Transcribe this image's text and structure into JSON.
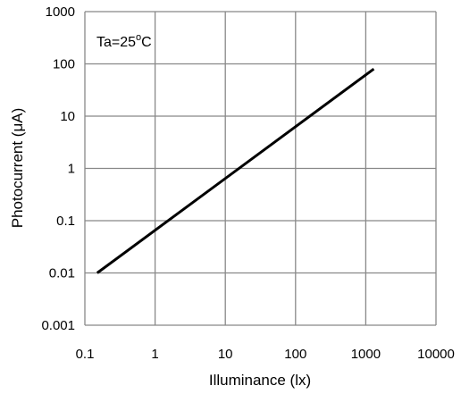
{
  "chart_data": {
    "type": "line",
    "title": "",
    "xlabel": "Illuminance (lx)",
    "ylabel": "Photocurrent (μA)",
    "x_scale": "log",
    "y_scale": "log",
    "xlim": [
      0.1,
      10000
    ],
    "ylim": [
      0.001,
      1000
    ],
    "grid": true,
    "legend": "none",
    "x_ticks": [
      "0.1",
      "1",
      "10",
      "100",
      "1000",
      "10000"
    ],
    "y_ticks": [
      "1000",
      "100",
      "10",
      "1",
      "0.1",
      "0.01",
      "0.001"
    ],
    "annotation": {
      "base": "Ta=25",
      "sup": "o",
      "unit": "C"
    },
    "series": [
      {
        "x": [
          0.15,
          1300
        ],
        "y": [
          0.01,
          80
        ],
        "color": "#000000"
      }
    ]
  }
}
